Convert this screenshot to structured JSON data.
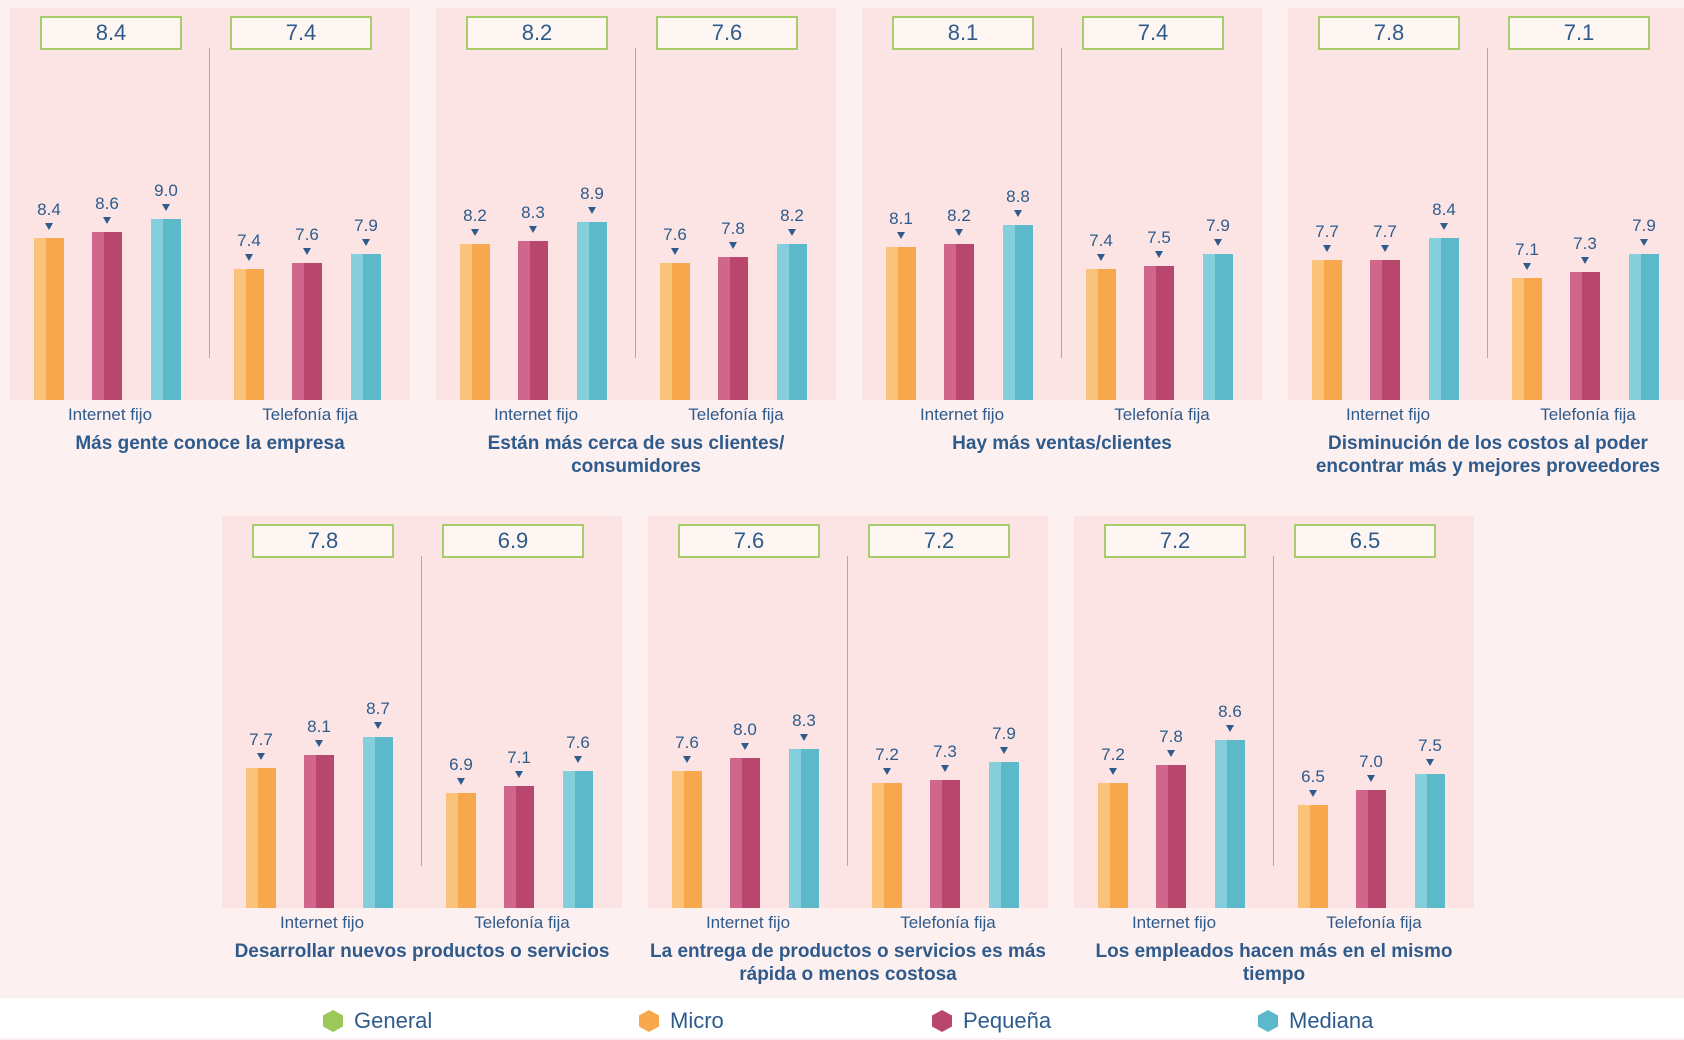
{
  "colors": {
    "micro": "#f7a74c",
    "pequena": "#b9466d",
    "mediana": "#5cb9c9",
    "micro_light": "#fbc27a",
    "pequena_light": "#d0668b",
    "mediana_light": "#84cfdb",
    "general": "#9cc85a"
  },
  "legend": [
    {
      "label": "General",
      "color": "#9cc85a"
    },
    {
      "label": "Micro",
      "color": "#f7a74c"
    },
    {
      "label": "Pequeña",
      "color": "#b9466d"
    },
    {
      "label": "Mediana",
      "color": "#5cb9c9"
    }
  ],
  "chart_data": [
    {
      "type": "bar",
      "title": "Más gente conoce la empresa",
      "groups": [
        {
          "name": "Internet fijo",
          "general": "8.4",
          "values": [
            8.4,
            8.6,
            9.0
          ],
          "labels": [
            "8.4",
            "8.6",
            "9.0"
          ]
        },
        {
          "name": "Telefonía fija",
          "general": "7.4",
          "values": [
            7.4,
            7.6,
            7.9
          ],
          "labels": [
            "7.4",
            "7.6",
            "7.9"
          ]
        }
      ],
      "series": [
        "Micro",
        "Pequeña",
        "Mediana"
      ]
    },
    {
      "type": "bar",
      "title": "Están más cerca de sus clientes/ consumidores",
      "groups": [
        {
          "name": "Internet fijo",
          "general": "8.2",
          "values": [
            8.2,
            8.3,
            8.9
          ],
          "labels": [
            "8.2",
            "8.3",
            "8.9"
          ]
        },
        {
          "name": "Telefonía fija",
          "general": "7.6",
          "values": [
            7.6,
            7.8,
            8.2
          ],
          "labels": [
            "7.6",
            "7.8",
            "8.2"
          ]
        }
      ],
      "series": [
        "Micro",
        "Pequeña",
        "Mediana"
      ]
    },
    {
      "type": "bar",
      "title": "Hay más ventas/clientes",
      "groups": [
        {
          "name": "Internet fijo",
          "general": "8.1",
          "values": [
            8.1,
            8.2,
            8.8
          ],
          "labels": [
            "8.1",
            "8.2",
            "8.8"
          ]
        },
        {
          "name": "Telefonía fija",
          "general": "7.4",
          "values": [
            7.4,
            7.5,
            7.9
          ],
          "labels": [
            "7.4",
            "7.5",
            "7.9"
          ]
        }
      ],
      "series": [
        "Micro",
        "Pequeña",
        "Mediana"
      ]
    },
    {
      "type": "bar",
      "title": "Disminución de los costos al poder encontrar más y mejores proveedores",
      "groups": [
        {
          "name": "Internet fijo",
          "general": "7.8",
          "values": [
            7.7,
            7.7,
            8.4
          ],
          "labels": [
            "7.7",
            "7.7",
            "8.4"
          ]
        },
        {
          "name": "Telefonía fija",
          "general": "7.1",
          "values": [
            7.1,
            7.3,
            7.9
          ],
          "labels": [
            "7.1",
            "7.3",
            "7.9"
          ]
        }
      ],
      "series": [
        "Micro",
        "Pequeña",
        "Mediana"
      ]
    },
    {
      "type": "bar",
      "title": "Desarrollar nuevos productos o servicios",
      "groups": [
        {
          "name": "Internet fijo",
          "general": "7.8",
          "values": [
            7.7,
            8.1,
            8.7
          ],
          "labels": [
            "7.7",
            "8.1",
            "8.7"
          ]
        },
        {
          "name": "Telefonía fija",
          "general": "6.9",
          "values": [
            6.9,
            7.1,
            7.6
          ],
          "labels": [
            "6.9",
            "7.1",
            "7.6"
          ]
        }
      ],
      "series": [
        "Micro",
        "Pequeña",
        "Mediana"
      ]
    },
    {
      "type": "bar",
      "title": "La entrega de productos o servicios es más rápida o menos costosa",
      "groups": [
        {
          "name": "Internet fijo",
          "general": "7.6",
          "values": [
            7.6,
            8.0,
            8.3
          ],
          "labels": [
            "7.6",
            "8.0",
            "8.3"
          ]
        },
        {
          "name": "Telefonía fija",
          "general": "7.2",
          "values": [
            7.2,
            7.3,
            7.9
          ],
          "labels": [
            "7.2",
            "7.3",
            "7.9"
          ]
        }
      ],
      "series": [
        "Micro",
        "Pequeña",
        "Mediana"
      ]
    },
    {
      "type": "bar",
      "title": "Los empleados hacen más en el mismo tiempo",
      "groups": [
        {
          "name": "Internet fijo",
          "general": "7.2",
          "values": [
            7.2,
            7.8,
            8.6
          ],
          "labels": [
            "7.2",
            "7.8",
            "8.6"
          ]
        },
        {
          "name": "Telefonía fija",
          "general": "6.5",
          "values": [
            6.5,
            7.0,
            7.5
          ],
          "labels": [
            "6.5",
            "7.0",
            "7.5"
          ]
        }
      ],
      "series": [
        "Micro",
        "Pequeña",
        "Mediana"
      ]
    }
  ]
}
